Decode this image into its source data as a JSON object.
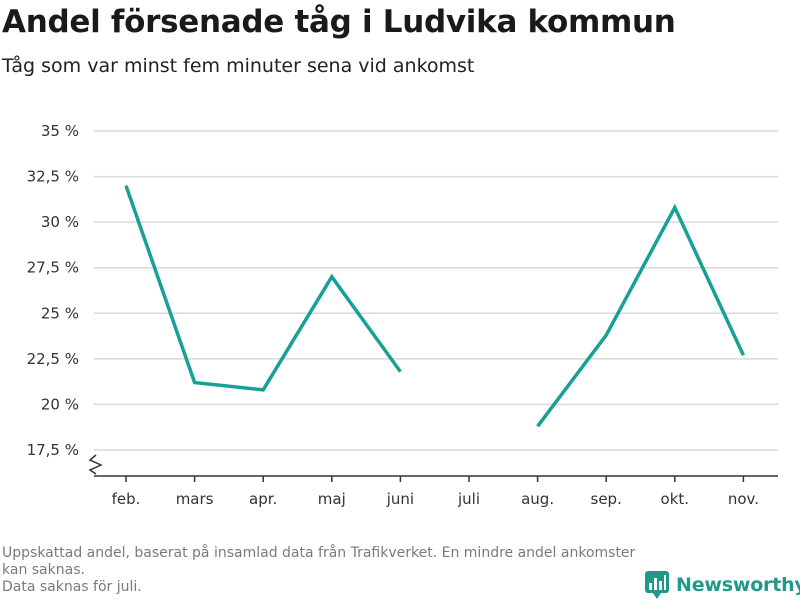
{
  "header": {
    "title": "Andel försenade tåg i Ludvika kommun",
    "subtitle": "Tåg som var minst fem minuter sena vid ankomst"
  },
  "colors": {
    "line": "#17a096",
    "grid": "#d9d9d9",
    "axis": "#333333",
    "brand": "#1f9a8a"
  },
  "chart_data": {
    "type": "line",
    "categories": [
      "feb.",
      "mars",
      "apr.",
      "maj",
      "juni",
      "juli",
      "aug.",
      "sep.",
      "okt.",
      "nov."
    ],
    "series": [
      {
        "values": [
          32.0,
          21.2,
          20.8,
          27.0,
          21.8,
          null,
          18.8,
          23.8,
          30.8,
          22.7
        ]
      }
    ],
    "yticks": [
      17.5,
      20,
      22.5,
      25,
      27.5,
      30,
      32.5,
      35
    ],
    "ytick_labels": [
      "17,5 %",
      "20 %",
      "22,5 %",
      "25 %",
      "27,5 %",
      "30 %",
      "32,5 %",
      "35 %"
    ],
    "ylim": [
      17.5,
      35
    ],
    "grid": true,
    "axis_break": true
  },
  "footnote": {
    "line1": "Uppskattad andel, baserat på insamlad data från Trafikverket. En mindre andel ankomster kan saknas.",
    "line2": "Data saknas för juli."
  },
  "brand": {
    "name": "Newsworthy",
    "icon": "newsworthy-logo-icon"
  }
}
